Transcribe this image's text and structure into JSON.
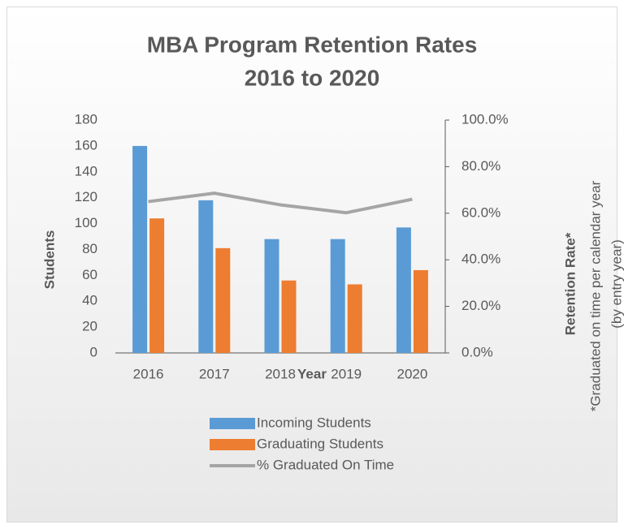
{
  "chart_data": {
    "type": "bar",
    "title": [
      "MBA Program Retention Rates",
      "2016 to 2020"
    ],
    "xlabel": "Year",
    "ylabel": "Students",
    "y2label": "Retention Rate*",
    "y2note": [
      "*Graduated on time per calendar year",
      "(by entry year)"
    ],
    "categories": [
      "2016",
      "2017",
      "2018",
      "2019",
      "2020"
    ],
    "series": [
      {
        "name": "Incoming Students",
        "type": "bar",
        "color": "#5b9bd5",
        "values": [
          160,
          118,
          88,
          88,
          97
        ]
      },
      {
        "name": "Graduating Students",
        "type": "bar",
        "color": "#ed7d31",
        "values": [
          104,
          81,
          56,
          53,
          64
        ]
      },
      {
        "name": "% Graduated On Time",
        "type": "line",
        "axis": "y2",
        "color": "#a5a5a5",
        "values": [
          65,
          68.6,
          63.6,
          60.2,
          66
        ]
      }
    ],
    "ylim": [
      0,
      180
    ],
    "yticks": [
      0,
      20,
      40,
      60,
      80,
      100,
      120,
      140,
      160,
      180
    ],
    "y2lim": [
      0,
      100
    ],
    "y2ticks": [
      {
        "value": 0,
        "label": "0.0%"
      },
      {
        "value": 20,
        "label": "20.0%"
      },
      {
        "value": 40,
        "label": "40.0%"
      },
      {
        "value": 60,
        "label": "60.0%"
      },
      {
        "value": 80,
        "label": "80.0%"
      },
      {
        "value": 100,
        "label": "100.0%"
      }
    ],
    "legend": "bottom"
  }
}
